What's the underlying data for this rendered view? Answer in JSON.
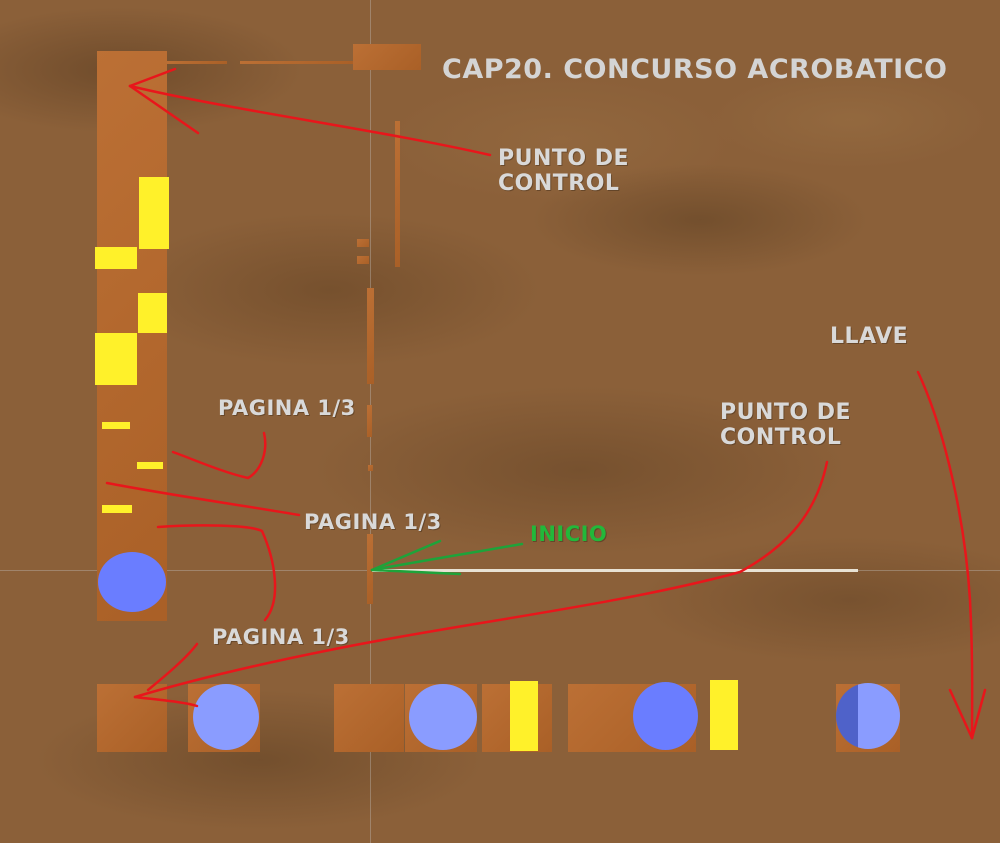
{
  "title": "CAP20. CONCURSO ACROBATICO",
  "labels": {
    "checkpoint_top": [
      "PUNTO DE",
      "CONTROL"
    ],
    "checkpoint_right": [
      "PUNTO DE",
      "CONTROL"
    ],
    "page_1": "PAGINA 1/3",
    "page_2": "PAGINA 1/3",
    "page_3": "PAGINA 1/3",
    "start": "INICIO",
    "key": "LLAVE"
  },
  "colors": {
    "annotation_arrow": "#e8161b",
    "start_arrow": "#1ea33a",
    "start_label": "#1fb436",
    "platform": "#b8682a",
    "highlight_block": "#fff12a",
    "orb": "#6a7dff"
  },
  "icons": [
    "arrow-icon",
    "orb-icon"
  ]
}
